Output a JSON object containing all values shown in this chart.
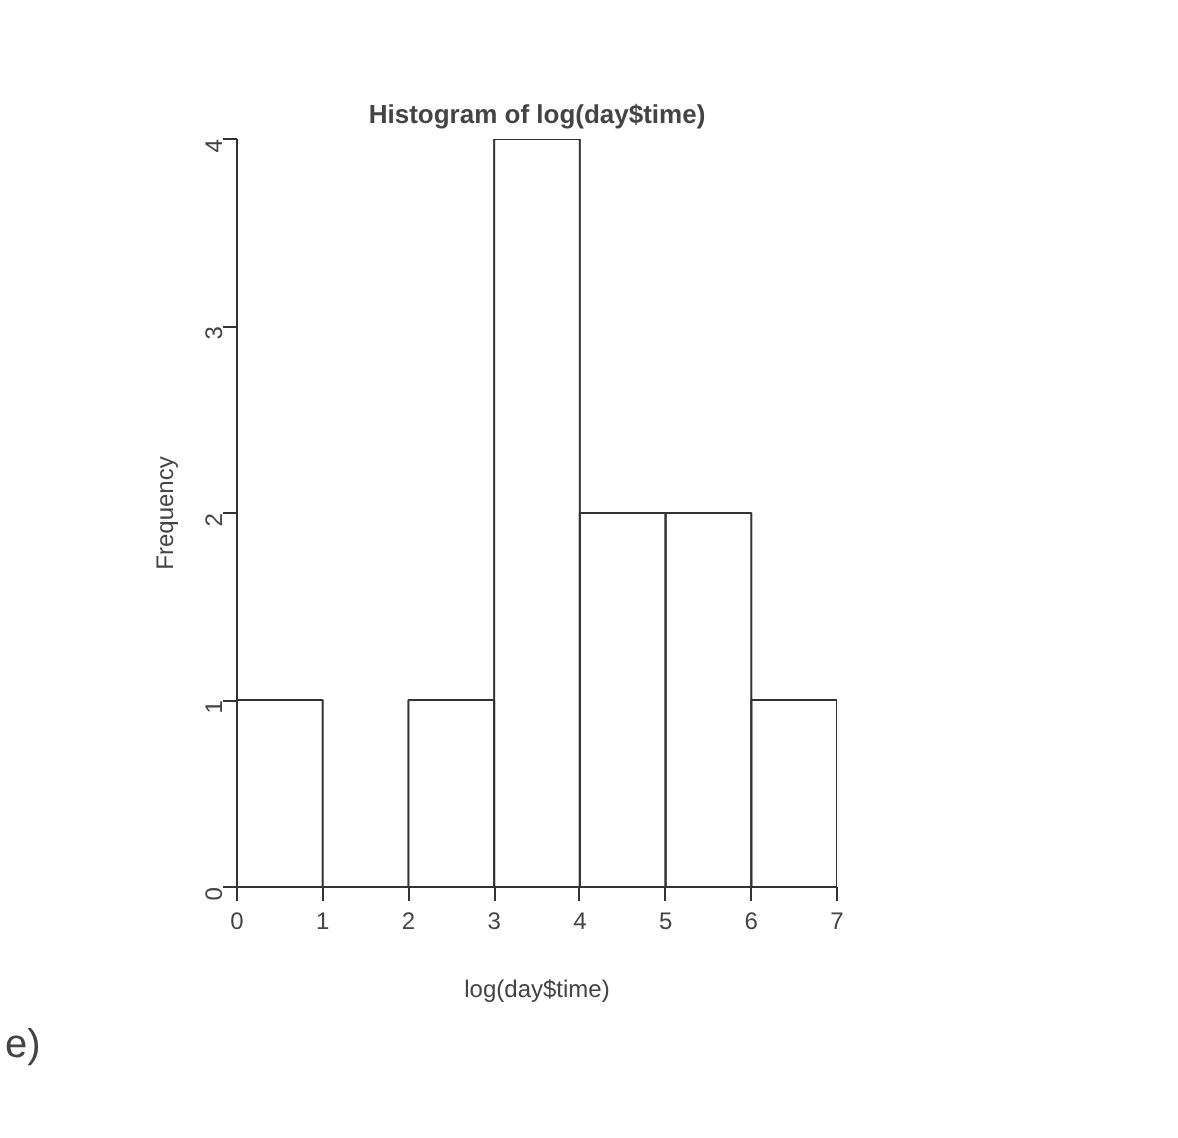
{
  "chart_data": {
    "type": "histogram",
    "title": "Histogram of log(day$time)",
    "xlabel": "log(day$time)",
    "ylabel": "Frequency",
    "bins": [
      0,
      1,
      2,
      3,
      4,
      5,
      6,
      7
    ],
    "values": [
      1,
      0,
      1,
      4,
      2,
      2,
      1
    ],
    "xlim": [
      0,
      7
    ],
    "ylim": [
      0,
      4
    ],
    "xticks": [
      0,
      1,
      2,
      3,
      4,
      5,
      6,
      7
    ],
    "yticks": [
      0,
      1,
      2,
      3,
      4
    ],
    "grid": false,
    "annotations": [
      "e)"
    ]
  }
}
